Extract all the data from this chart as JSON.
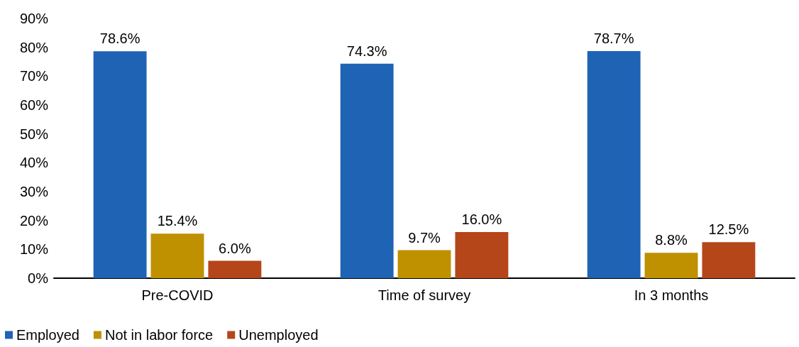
{
  "chart_data": {
    "type": "bar",
    "categories": [
      "Pre-COVID",
      "Time of survey",
      "In 3 months"
    ],
    "series": [
      {
        "name": "Employed",
        "color": "#1f63b5",
        "values": [
          78.6,
          74.3,
          78.7
        ],
        "value_labels": [
          "78.6%",
          "74.3%",
          "78.7%"
        ]
      },
      {
        "name": "Not in labor force",
        "color": "#bf9000",
        "values": [
          15.4,
          9.7,
          8.8
        ],
        "value_labels": [
          "15.4%",
          "9.7%",
          "8.8%"
        ]
      },
      {
        "name": "Unemployed",
        "color": "#b5461a",
        "values": [
          6.0,
          16.0,
          12.5
        ],
        "value_labels": [
          "6.0%",
          "16.0%",
          "12.5%"
        ]
      }
    ],
    "ylim": [
      0,
      90
    ],
    "yticks": [
      {
        "value": 0,
        "label": "0%"
      },
      {
        "value": 10,
        "label": "10%"
      },
      {
        "value": 20,
        "label": "20%"
      },
      {
        "value": 30,
        "label": "30%"
      },
      {
        "value": 40,
        "label": "40%"
      },
      {
        "value": 50,
        "label": "50%"
      },
      {
        "value": 60,
        "label": "60%"
      },
      {
        "value": 70,
        "label": "70%"
      },
      {
        "value": 80,
        "label": "80%"
      },
      {
        "value": 90,
        "label": "90%"
      }
    ],
    "grid": false,
    "legend": "bottom left"
  }
}
